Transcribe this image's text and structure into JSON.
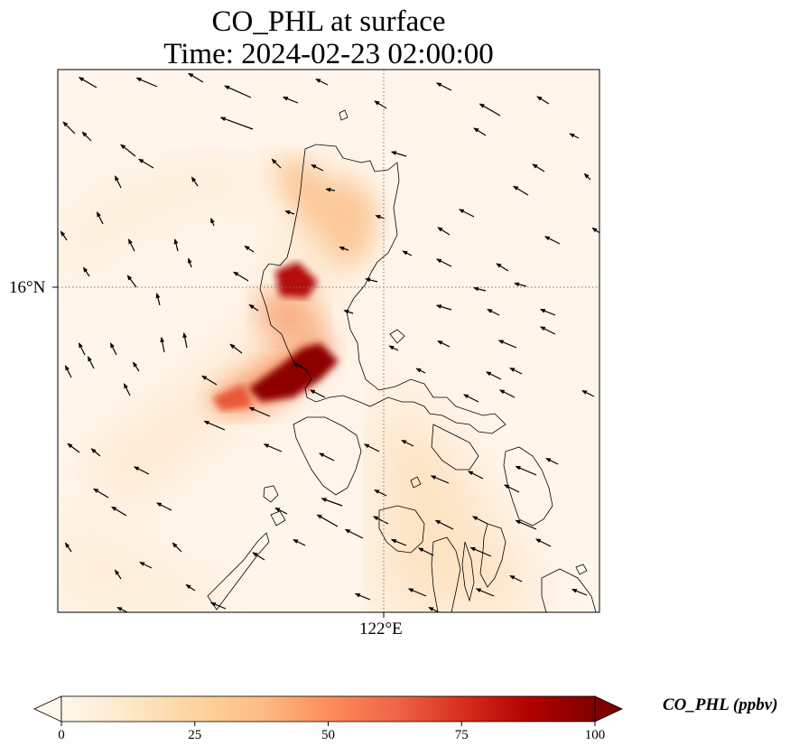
{
  "title": {
    "line1": "CO_PHL at surface",
    "line2": "Time: 2024-02-23 02:00:00"
  },
  "axes": {
    "lat_label": "16°N",
    "lon_label": "122°E"
  },
  "colorbar": {
    "label": "CO_PHL (ppbv)",
    "ticks": [
      "0",
      "25",
      "50",
      "75",
      "100"
    ],
    "min": 0,
    "max": 100,
    "colormap": [
      "#fff7ec",
      "#fee8c8",
      "#fdd49e",
      "#fdbb84",
      "#fc8d59",
      "#ef6548",
      "#d7301f",
      "#b30000",
      "#7f0000"
    ],
    "extend": "both"
  },
  "map": {
    "background": "#fff5ea",
    "gridline_color": "#777777",
    "coastline_color": "#000000",
    "features": [
      "gridlines",
      "coastlines",
      "wind-vectors",
      "concentration-field"
    ]
  }
}
